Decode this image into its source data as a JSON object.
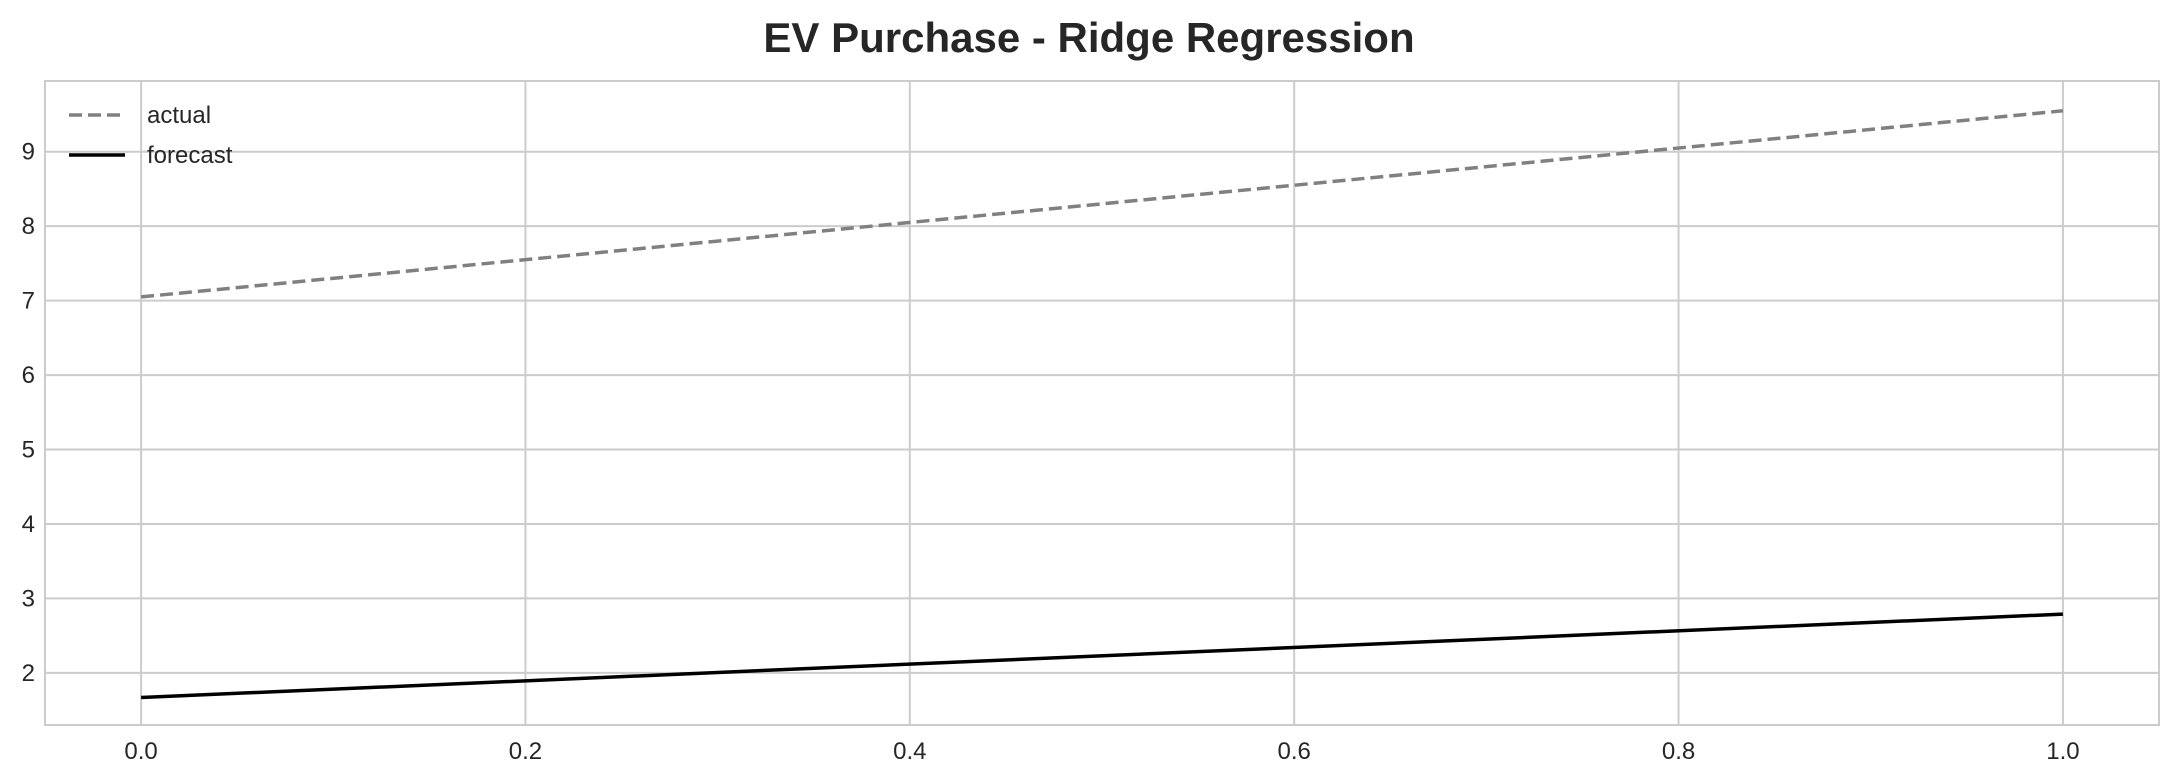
{
  "chart_data": {
    "type": "line",
    "title": "EV Purchase - Ridge Regression",
    "xlabel": "",
    "ylabel": "",
    "xlim": [
      -0.05,
      1.05
    ],
    "ylim": [
      1.3,
      9.95
    ],
    "x_ticks": [
      0.0,
      0.2,
      0.4,
      0.6,
      0.8,
      1.0
    ],
    "x_tick_labels": [
      "0.0",
      "0.2",
      "0.4",
      "0.6",
      "0.8",
      "1.0"
    ],
    "y_ticks": [
      2,
      3,
      4,
      5,
      6,
      7,
      8,
      9
    ],
    "y_tick_labels": [
      "2",
      "3",
      "4",
      "5",
      "6",
      "7",
      "8",
      "9"
    ],
    "grid": true,
    "legend_position": "top-left",
    "series": [
      {
        "name": "actual",
        "x": [
          0.0,
          1.0
        ],
        "y": [
          7.05,
          9.55
        ],
        "color": "#808080",
        "style": "dashed"
      },
      {
        "name": "forecast",
        "x": [
          0.0,
          1.0
        ],
        "y": [
          1.67,
          2.79
        ],
        "color": "#000000",
        "style": "solid"
      }
    ]
  }
}
